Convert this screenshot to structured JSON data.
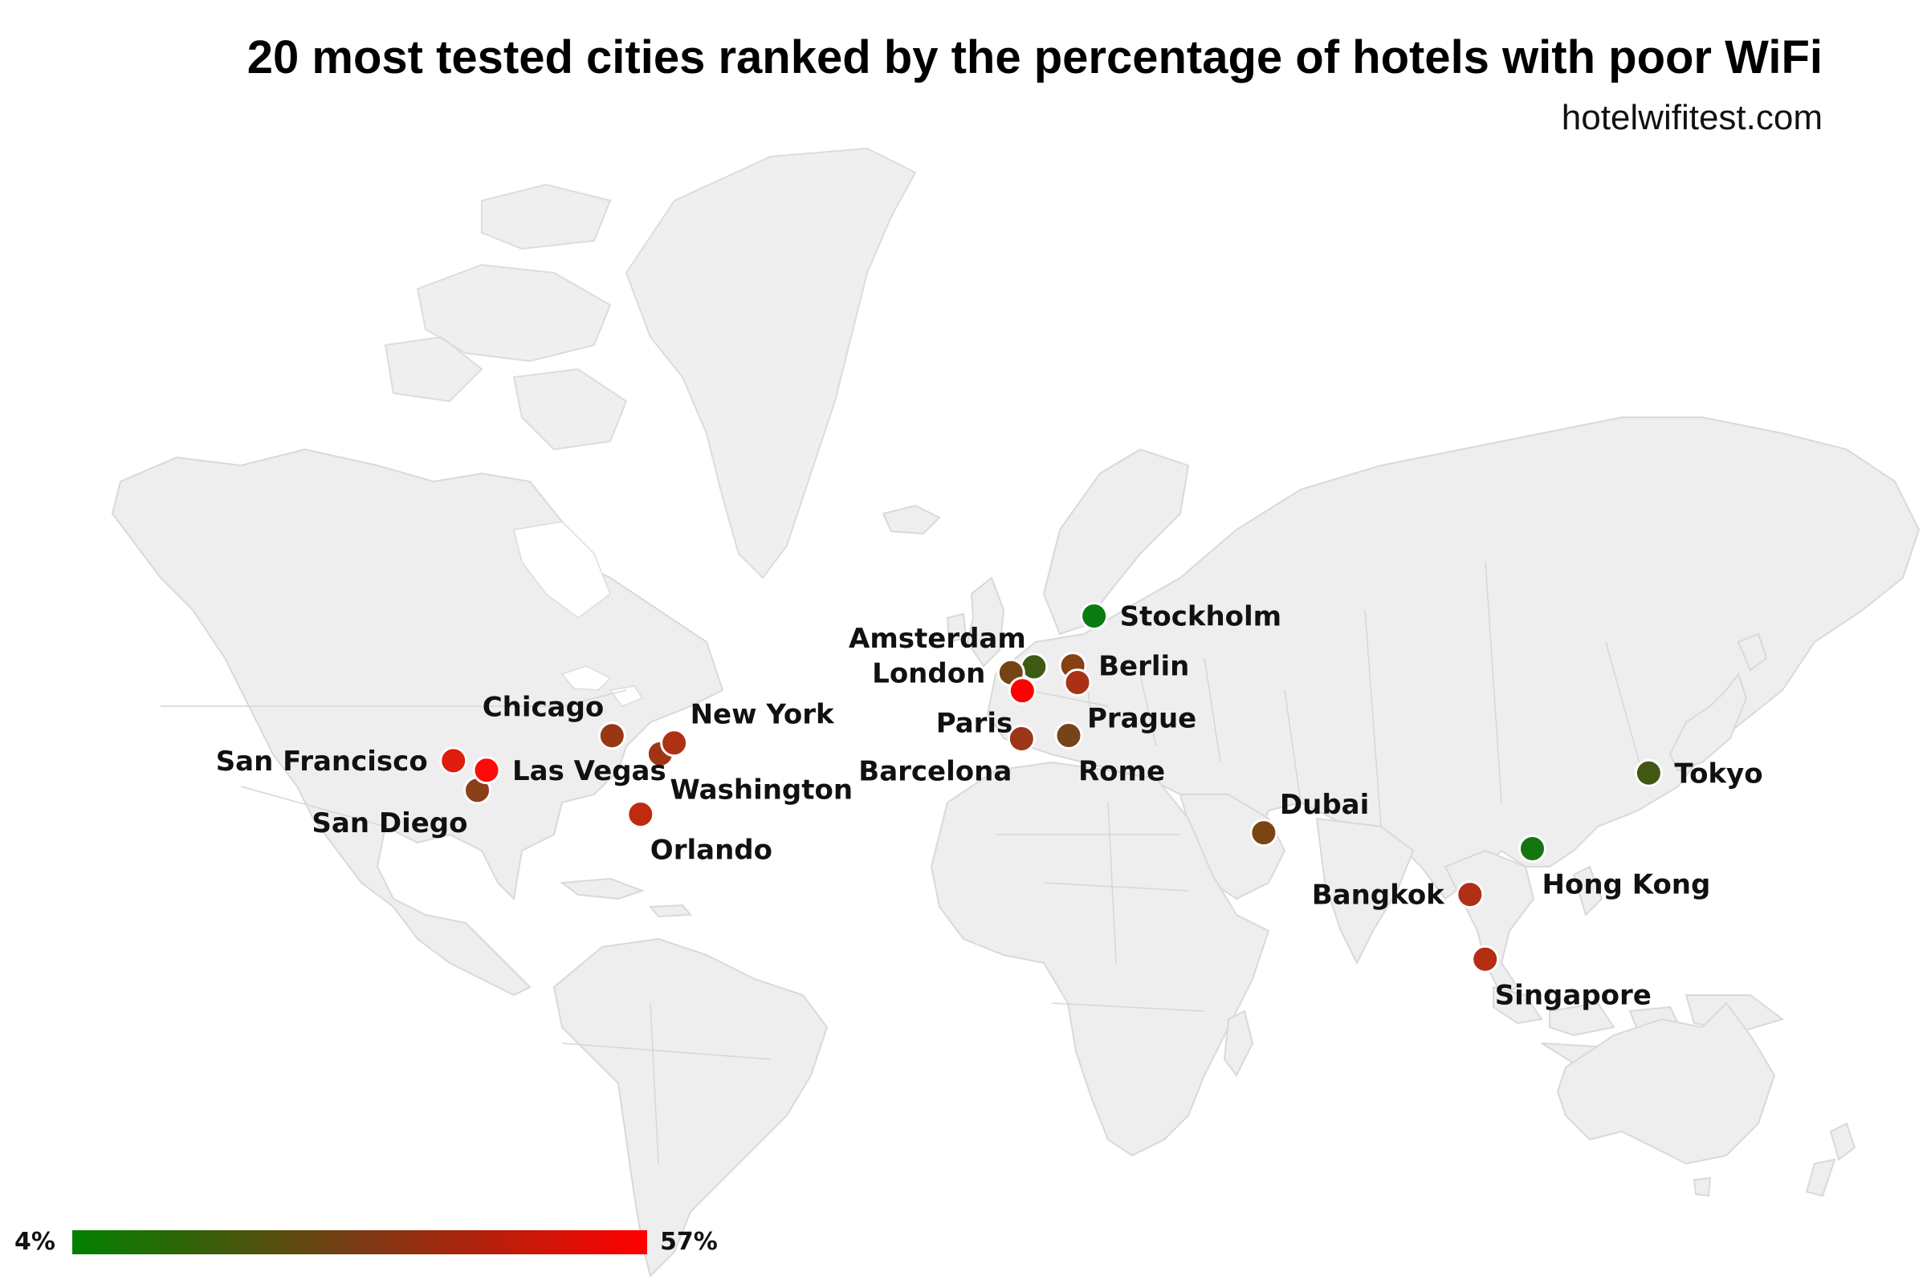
{
  "title": "20 most tested cities ranked by the percentage of hotels with poor WiFi",
  "source": "hotelwifitest.com",
  "legend": {
    "min_label": "4%",
    "max_label": "57%",
    "min_value": 4,
    "max_value": 57,
    "min_color": "#008000",
    "max_color": "#ff0000"
  },
  "cities": [
    {
      "name": "Stockholm",
      "lon": 18.07,
      "lat": 59.33,
      "pct": 4,
      "color": "#0a7d10",
      "label_pos": "right"
    },
    {
      "name": "Hong Kong",
      "lon": 114.17,
      "lat": 22.32,
      "pct": 6,
      "color": "#15760f",
      "label_pos": "below-right"
    },
    {
      "name": "Amsterdam",
      "lon": 4.9,
      "lat": 52.37,
      "pct": 18,
      "color": "#3f5a12",
      "label_pos": "above-left"
    },
    {
      "name": "Tokyo",
      "lon": 139.69,
      "lat": 35.69,
      "pct": 18,
      "color": "#405812",
      "label_pos": "right"
    },
    {
      "name": "London",
      "lon": -0.13,
      "lat": 51.51,
      "pct": 31,
      "color": "#754314",
      "label_pos": "left"
    },
    {
      "name": "Rome",
      "lon": 12.5,
      "lat": 41.9,
      "pct": 31,
      "color": "#76441a",
      "label_pos": "below-right"
    },
    {
      "name": "Dubai",
      "lon": 55.27,
      "lat": 25.2,
      "pct": 32,
      "color": "#7a4513",
      "label_pos": "above-right"
    },
    {
      "name": "Berlin",
      "lon": 13.4,
      "lat": 52.52,
      "pct": 34,
      "color": "#854114",
      "label_pos": "right"
    },
    {
      "name": "San Diego",
      "lon": -117.16,
      "lat": 32.72,
      "pct": 35,
      "color": "#8a4019",
      "label_pos": "below-left"
    },
    {
      "name": "Chicago",
      "lon": -87.63,
      "lat": 41.88,
      "pct": 38,
      "color": "#983716",
      "label_pos": "above-left"
    },
    {
      "name": "Barcelona",
      "lon": 2.17,
      "lat": 41.39,
      "pct": 39,
      "color": "#9c3616",
      "label_pos": "below-left"
    },
    {
      "name": "Washington",
      "lon": -77.04,
      "lat": 38.91,
      "pct": 40,
      "color": "#a03516",
      "label_pos": "below-right"
    },
    {
      "name": "Prague",
      "lon": 14.44,
      "lat": 50.08,
      "pct": 42,
      "color": "#a93216",
      "label_pos": "below-right"
    },
    {
      "name": "New York",
      "lon": -74.01,
      "lat": 40.71,
      "pct": 43,
      "color": "#ad3115",
      "label_pos": "above-right"
    },
    {
      "name": "Bangkok",
      "lon": 100.5,
      "lat": 13.76,
      "pct": 44,
      "color": "#b12f15",
      "label_pos": "left"
    },
    {
      "name": "Singapore",
      "lon": 103.82,
      "lat": 1.35,
      "pct": 45,
      "color": "#b42e13",
      "label_pos": "below-right"
    },
    {
      "name": "Orlando",
      "lon": -81.38,
      "lat": 28.54,
      "pct": 47,
      "color": "#bf2a11",
      "label_pos": "below-right"
    },
    {
      "name": "San Francisco",
      "lon": -122.42,
      "lat": 37.77,
      "pct": 53,
      "color": "#df1d0e",
      "label_pos": "left"
    },
    {
      "name": "Las Vegas",
      "lon": -115.14,
      "lat": 36.17,
      "pct": 57,
      "color": "#ff0a0a",
      "label_pos": "right"
    },
    {
      "name": "Paris",
      "lon": 2.35,
      "lat": 48.86,
      "pct": 57,
      "color": "#ff0000",
      "label_pos": "below-left"
    }
  ]
}
